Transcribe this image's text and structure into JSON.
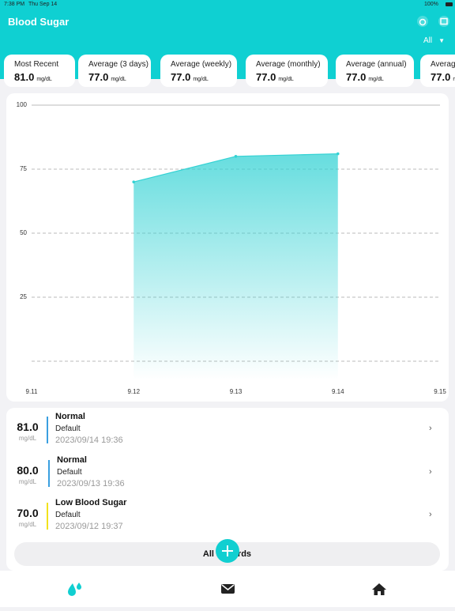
{
  "status_bar": {
    "time": "7:38 PM",
    "date": "Thu Sep 14",
    "battery": "100%"
  },
  "header": {
    "title": "Blood Sugar",
    "filter": "All"
  },
  "stats": [
    {
      "label": "Most Recent",
      "value": "81.0",
      "unit": "mg/dL"
    },
    {
      "label": "Average (3 days)",
      "value": "77.0",
      "unit": "mg/dL"
    },
    {
      "label": "Average (weekly)",
      "value": "77.0",
      "unit": "mg/dL"
    },
    {
      "label": "Average (monthly)",
      "value": "77.0",
      "unit": "mg/dL"
    },
    {
      "label": "Average (annual)",
      "value": "77.0",
      "unit": "mg/dL"
    },
    {
      "label": "Average",
      "value": "77.0",
      "unit": "mg/dL"
    }
  ],
  "chart_data": {
    "type": "area",
    "categories": [
      "9.11",
      "9.12",
      "9.13",
      "9.14",
      "9.15"
    ],
    "values": [
      null,
      70,
      80,
      81,
      null
    ],
    "color": "#33d2d4",
    "ylim": [
      0,
      100
    ],
    "yticks": [
      25,
      50,
      75,
      100
    ],
    "grid": true
  },
  "records": [
    {
      "value": "81.0",
      "unit": "mg/dL",
      "status": "Normal",
      "tag": "Default",
      "datetime": "2023/09/14 19:36",
      "color": "#3a9fe0"
    },
    {
      "value": "80.0",
      "unit": "mg/dL",
      "status": "Normal",
      "tag": "Default",
      "datetime": "2023/09/13 19:36",
      "color": "#3a9fe0"
    },
    {
      "value": "70.0",
      "unit": "mg/dL",
      "status": "Low Blood Sugar",
      "tag": "Default",
      "datetime": "2023/09/12 19:37",
      "color": "#f1e21c"
    }
  ],
  "button": "All Records"
}
